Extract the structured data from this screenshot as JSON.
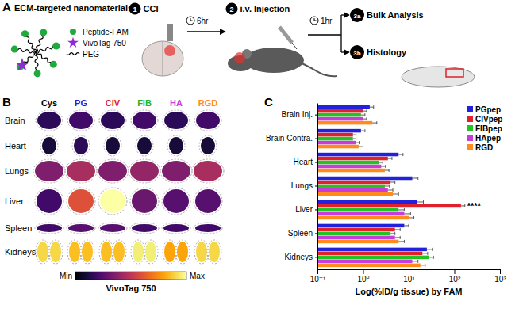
{
  "panel_a": {
    "label": "A",
    "title": "ECM-targeted nanomaterials",
    "legend": [
      {
        "name": "Peptide-FAM",
        "color": "#1faa3c"
      },
      {
        "name": "VivoTag 750",
        "color": "#8e2bd1"
      },
      {
        "name": "PEG",
        "color": "#000000"
      }
    ],
    "steps": [
      {
        "number": "1",
        "label": "CCI"
      },
      {
        "number": "2",
        "label": "i.v. Injection"
      },
      {
        "number": "3a",
        "label": "Bulk Analysis"
      },
      {
        "number": "3b",
        "label": "Histology"
      }
    ],
    "intervals": [
      "6hr",
      "1hr"
    ]
  },
  "panel_b": {
    "label": "B",
    "columns": [
      {
        "name": "Cys",
        "color": "#000000"
      },
      {
        "name": "PG",
        "color": "#2222dd"
      },
      {
        "name": "CIV",
        "color": "#e0202a"
      },
      {
        "name": "FIB",
        "color": "#22b322"
      },
      {
        "name": "HA",
        "color": "#c83cdb"
      },
      {
        "name": "RGD",
        "color": "#ff8c1a"
      }
    ],
    "rows": [
      "Brain",
      "Heart",
      "Lungs",
      "Liver",
      "Spleen",
      "Kidneys"
    ],
    "intensity": [
      [
        0.15,
        0.2,
        0.15,
        0.2,
        0.15,
        0.2
      ],
      [
        0.1,
        0.15,
        0.1,
        0.1,
        0.1,
        0.1
      ],
      [
        0.35,
        0.45,
        0.35,
        0.4,
        0.35,
        0.45
      ],
      [
        0.2,
        0.6,
        1.0,
        0.3,
        0.25,
        0.25
      ],
      [
        0.2,
        0.25,
        0.25,
        0.2,
        0.2,
        0.2
      ],
      [
        0.9,
        0.85,
        0.85,
        0.95,
        0.8,
        0.9
      ]
    ],
    "colorbar": {
      "range": [
        0,
        1
      ],
      "min_label": "Min",
      "max_label": "Max",
      "title": "VivoTag 750"
    }
  },
  "panel_c": {
    "label": "C"
  },
  "chart_data": {
    "type": "bar",
    "orientation": "horizontal",
    "log": "x",
    "xlabel": "Log(%ID/g tissue) by FAM",
    "categories": [
      "Brain Inj.",
      "Brain Contra.",
      "Heart",
      "Lungs",
      "Liver",
      "Spleen",
      "Kidneys"
    ],
    "series": [
      {
        "name": "PGpep",
        "color": "#2222dd",
        "values": [
          1.4,
          0.9,
          6,
          12,
          15,
          8,
          25
        ],
        "errors": [
          0.3,
          0.2,
          1.5,
          4,
          6,
          2,
          8
        ]
      },
      {
        "name": "CIVpep",
        "color": "#e0202a",
        "values": [
          1.0,
          0.6,
          3.5,
          4,
          140,
          5,
          20
        ],
        "errors": [
          0.2,
          0.1,
          0.8,
          1,
          30,
          1.5,
          6
        ]
      },
      {
        "name": "FIBpep",
        "color": "#22c322",
        "values": [
          0.9,
          0.6,
          2.2,
          3,
          6,
          4,
          28
        ],
        "errors": [
          0.2,
          0.1,
          0.5,
          0.8,
          2,
          1,
          7
        ]
      },
      {
        "name": "HApep",
        "color": "#c83cdb",
        "values": [
          1.0,
          0.7,
          2.5,
          3.5,
          8,
          5,
          12
        ],
        "errors": [
          0.2,
          0.15,
          0.6,
          1,
          3,
          1.5,
          4
        ]
      },
      {
        "name": "RGD",
        "color": "#ff8c1a",
        "values": [
          1.6,
          0.8,
          3,
          4.5,
          10,
          6,
          18
        ],
        "errors": [
          0.4,
          0.2,
          0.7,
          1.5,
          3,
          2,
          5
        ]
      }
    ],
    "xlim": [
      0.1,
      1000
    ],
    "xticks": [
      {
        "value": 0.1,
        "label": "10⁻¹"
      },
      {
        "value": 1,
        "label": "10⁰"
      },
      {
        "value": 10,
        "label": "10¹"
      },
      {
        "value": 100,
        "label": "10²"
      },
      {
        "value": 1000,
        "label": "10³"
      }
    ],
    "legend": "upper right",
    "annotations": [
      {
        "text": "****",
        "category": "Liver",
        "series": "CIVpep"
      }
    ]
  }
}
